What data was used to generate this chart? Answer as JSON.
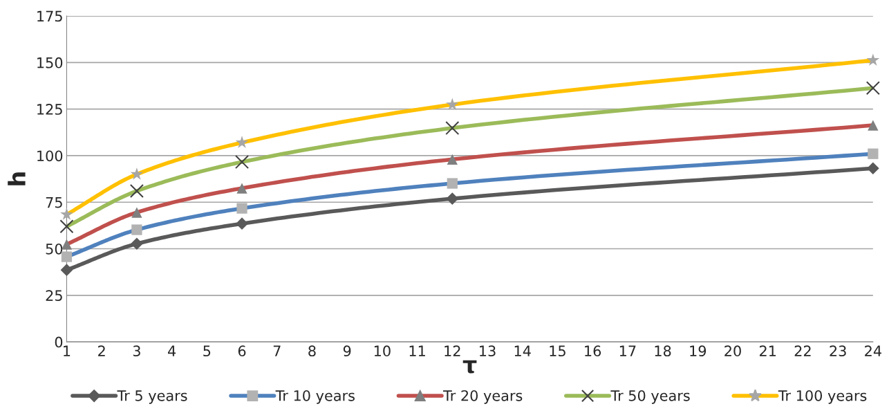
{
  "chart_data": {
    "type": "line",
    "xlabel": "τ",
    "ylabel": "h",
    "x": [
      1,
      3,
      6,
      12,
      24
    ],
    "series": [
      {
        "name": "Tr 5 years",
        "color": "#595959",
        "marker": "diamond",
        "colors": [
          "#595959",
          "#595959",
          "#595959",
          "#595959",
          "#595959"
        ],
        "values": [
          38.6,
          52.7,
          63.5,
          76.9,
          93.2
        ]
      },
      {
        "name": "Tr 10 years",
        "color": "#4f81bd",
        "marker": "square",
        "colors": [
          "#b2b2b2",
          "#b2b2b2",
          "#b2b2b2",
          "#b2b2b2",
          "#b2b2b2"
        ],
        "values": [
          45.7,
          60.2,
          71.7,
          85.1,
          101
        ]
      },
      {
        "name": "Tr 20 years",
        "color": "#c0504d",
        "marker": "triangle",
        "colors": [
          "#7f7f7f",
          "#7f7f7f",
          "#7f7f7f",
          "#7f7f7f",
          "#7f7f7f"
        ],
        "values": [
          52.4,
          69.5,
          82.5,
          98,
          116.3
        ]
      },
      {
        "name": "Tr 50 years",
        "color": "#9bbb59",
        "marker": "cross",
        "colors": [
          "#404040",
          "#404040",
          "#404040",
          "#404040",
          "#404040"
        ],
        "values": [
          62,
          81,
          96.6,
          114.8,
          136.3
        ]
      },
      {
        "name": "Tr 100 years",
        "color": "#ffc000",
        "marker": "star",
        "colors": [
          "#a6a6a6",
          "#a6a6a6",
          "#a6a6a6",
          "#a6a6a6",
          "#a6a6a6"
        ],
        "values": [
          68.4,
          90,
          107,
          127.4,
          151.2
        ]
      }
    ],
    "xlim": [
      1,
      24
    ],
    "xticks": [
      1,
      2,
      3,
      4,
      5,
      6,
      7,
      8,
      9,
      10,
      11,
      12,
      13,
      14,
      15,
      16,
      17,
      18,
      19,
      20,
      21,
      22,
      23,
      24
    ],
    "ylim": [
      0,
      175
    ],
    "yticks": [
      0,
      25,
      50,
      75,
      100,
      125,
      150,
      175
    ],
    "grid": "y",
    "legend": "bottom",
    "line_style": "solid"
  }
}
